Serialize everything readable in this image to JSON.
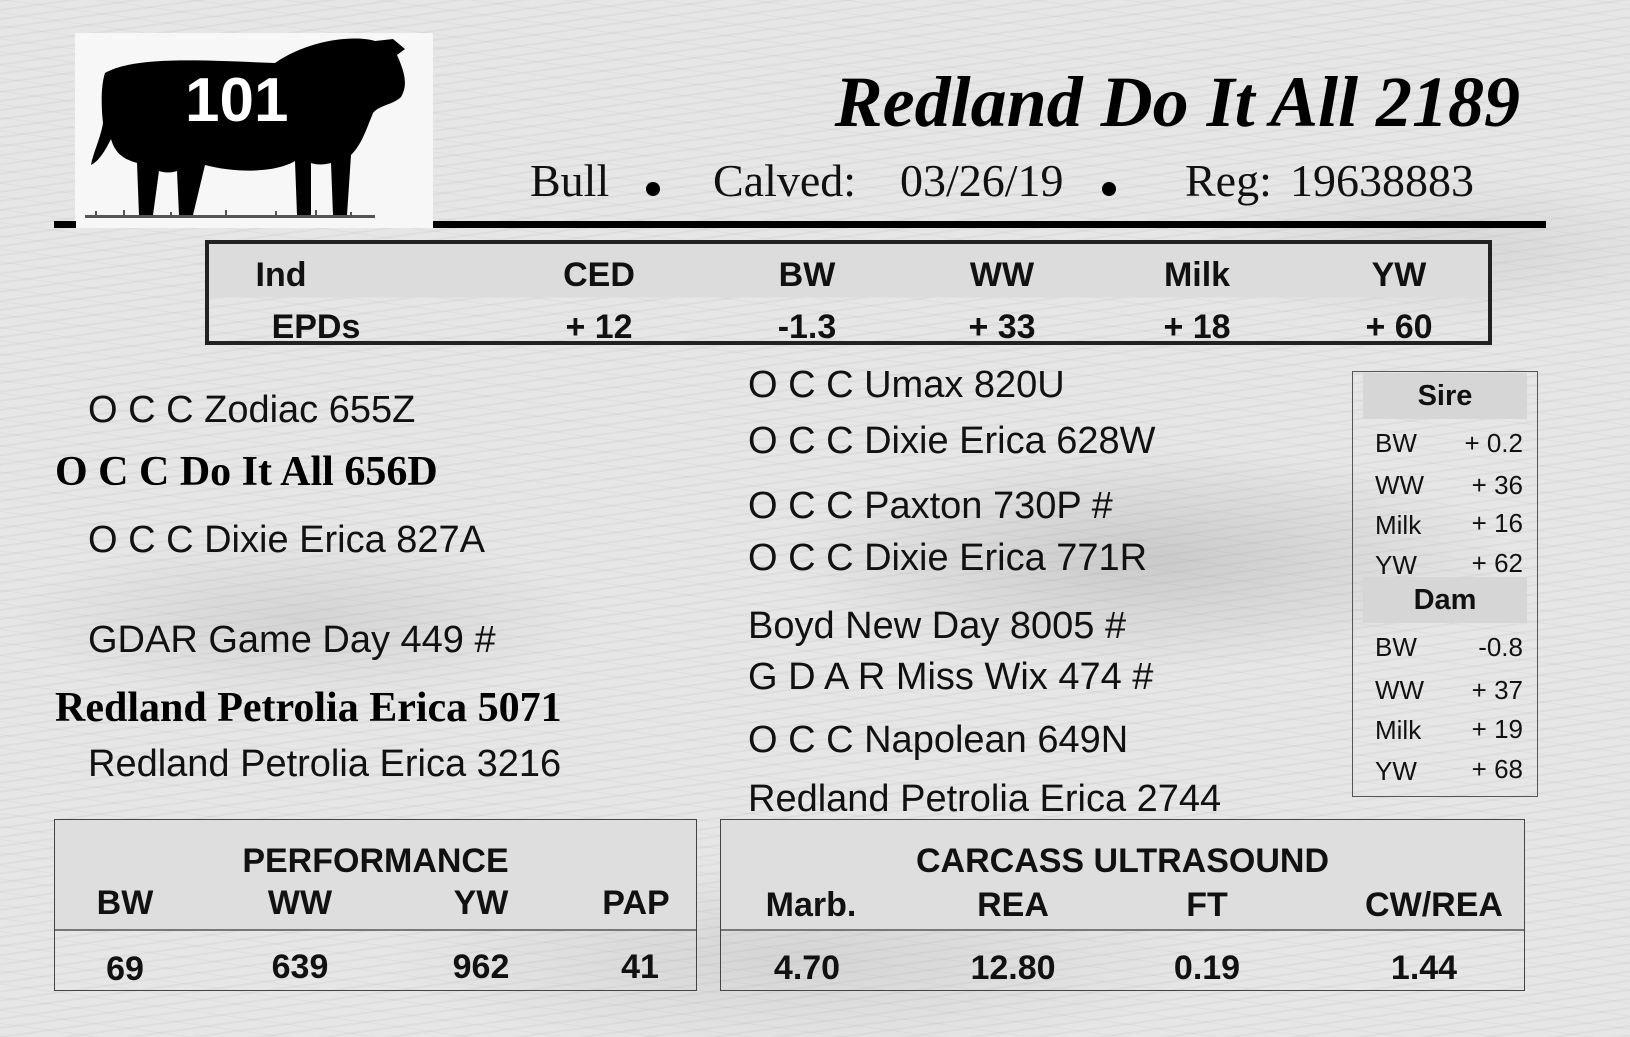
{
  "lot_number": "101",
  "animal": {
    "name": "Redland Do It All 2189",
    "type": "Bull",
    "calved_label": "Calved:",
    "calved_date": "03/26/19",
    "reg_label": "Reg:",
    "reg_number": "19638883"
  },
  "epds": {
    "row1_label": "Ind",
    "row2_label": "EPDs",
    "columns": [
      {
        "header": "CED",
        "value": "+ 12"
      },
      {
        "header": "BW",
        "value": "-1.3"
      },
      {
        "header": "WW",
        "value": "+ 33"
      },
      {
        "header": "Milk",
        "value": "+ 18"
      },
      {
        "header": "YW",
        "value": "+ 60"
      }
    ]
  },
  "pedigree": {
    "sire": "O C C Do It All 656D",
    "sire_sire": "O C C Zodiac 655Z",
    "sire_dam": "O C C Dixie Erica 827A",
    "dam": "Redland Petrolia Erica 5071",
    "dam_sire": "GDAR Game Day 449 #",
    "dam_dam": "Redland Petrolia Erica 3216",
    "ss_sire": "O C C Umax 820U",
    "ss_dam": "O C C Dixie Erica 628W",
    "sd_sire": "O C C Paxton 730P #",
    "sd_dam": "O C C Dixie Erica 771R",
    "ds_sire": "Boyd New Day 8005 #",
    "ds_dam": "G D A R Miss Wix 474 #",
    "dd_sire": "O C C Napolean 649N",
    "dd_dam": "Redland Petrolia Erica 2744"
  },
  "parent_epds": {
    "sire_title": "Sire",
    "dam_title": "Dam",
    "sire": [
      {
        "label": "BW",
        "value": "+ 0.2"
      },
      {
        "label": "WW",
        "value": "+ 36"
      },
      {
        "label": "Milk",
        "value": "+ 16"
      },
      {
        "label": "YW",
        "value": "+ 62"
      }
    ],
    "dam": [
      {
        "label": "BW",
        "value": "-0.8"
      },
      {
        "label": "WW",
        "value": "+ 37"
      },
      {
        "label": "Milk",
        "value": "+ 19"
      },
      {
        "label": "YW",
        "value": "+ 68"
      }
    ]
  },
  "performance": {
    "title": "PERFORMANCE",
    "columns": [
      {
        "header": "BW",
        "value": "69"
      },
      {
        "header": "WW",
        "value": "639"
      },
      {
        "header": "YW",
        "value": "962"
      },
      {
        "header": "PAP",
        "value": "41"
      }
    ]
  },
  "carcass": {
    "title": "CARCASS ULTRASOUND",
    "columns": [
      {
        "header": "Marb.",
        "value": "4.70"
      },
      {
        "header": "REA",
        "value": "12.80"
      },
      {
        "header": "FT",
        "value": "0.19"
      },
      {
        "header": "CW/REA",
        "value": "1.44"
      }
    ]
  },
  "icons": {
    "logo": "bull-silhouette-icon"
  }
}
